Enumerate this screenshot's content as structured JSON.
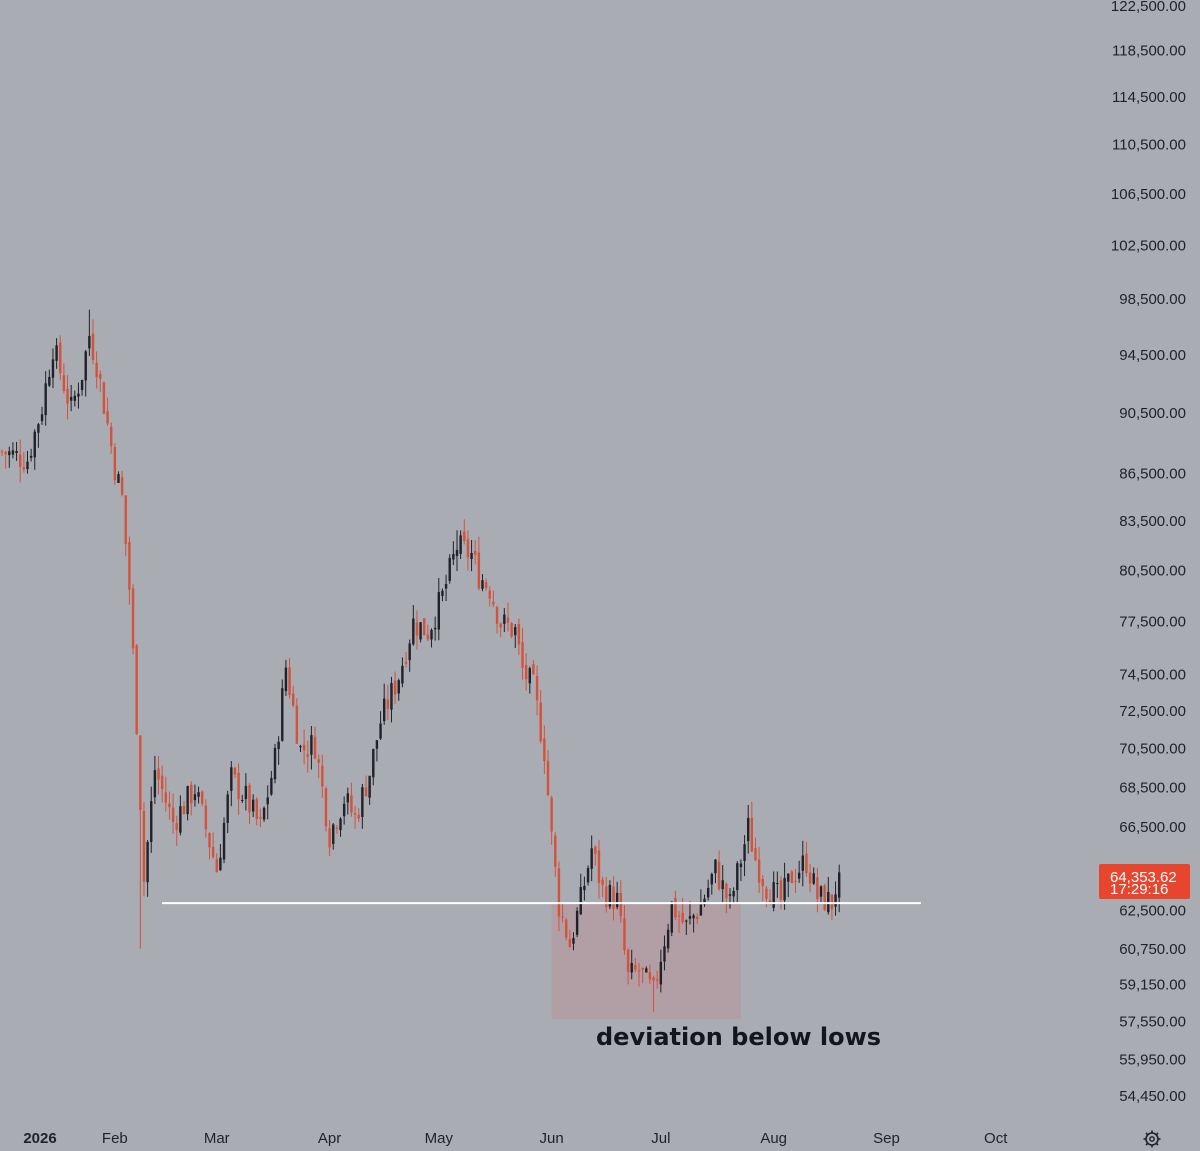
{
  "chart_data": {
    "type": "candlestick",
    "title": "",
    "x_axis": {
      "labels": [
        "2026",
        "Feb",
        "Mar",
        "Apr",
        "May",
        "Jun",
        "Jul",
        "Aug",
        "Sep",
        "Oct"
      ],
      "start_date": "2026-01-01",
      "end_date": "2026-10-15"
    },
    "y_axis": {
      "scale": "log",
      "range": [
        53500,
        122500
      ],
      "tick_labels": [
        "122,500.00",
        "118,500.00",
        "114,500.00",
        "110,500.00",
        "106,500.00",
        "102,500.00",
        "98,500.00",
        "94,500.00",
        "90,500.00",
        "86,500.00",
        "83,500.00",
        "80,500.00",
        "77,500.00",
        "74,500.00",
        "72,500.00",
        "70,500.00",
        "68,500.00",
        "66,500.00",
        "62,500.00",
        "60,750.00",
        "59,150.00",
        "57,550.00",
        "55,950.00",
        "54,450.00"
      ]
    },
    "approx_closes": [
      {
        "date": "2026-01-01",
        "close": 88000
      },
      {
        "date": "2026-01-08",
        "close": 87500
      },
      {
        "date": "2026-01-12",
        "close": 91000
      },
      {
        "date": "2026-01-15",
        "close": 95200
      },
      {
        "date": "2026-01-20",
        "close": 90800
      },
      {
        "date": "2026-01-23",
        "close": 93300
      },
      {
        "date": "2026-01-25",
        "close": 96000
      },
      {
        "date": "2026-01-27",
        "close": 94000
      },
      {
        "date": "2026-01-30",
        "close": 89800
      },
      {
        "date": "2026-02-01",
        "close": 87000
      },
      {
        "date": "2026-02-03",
        "close": 85000
      },
      {
        "date": "2026-02-05",
        "close": 79500
      },
      {
        "date": "2026-02-07",
        "close": 72000
      },
      {
        "date": "2026-02-09",
        "close": 64000
      },
      {
        "date": "2026-02-12",
        "close": 69500
      },
      {
        "date": "2026-02-17",
        "close": 66800
      },
      {
        "date": "2026-02-23",
        "close": 68500
      },
      {
        "date": "2026-03-01",
        "close": 64500
      },
      {
        "date": "2026-03-05",
        "close": 69000
      },
      {
        "date": "2026-03-09",
        "close": 68000
      },
      {
        "date": "2026-03-13",
        "close": 66500
      },
      {
        "date": "2026-03-17",
        "close": 70000
      },
      {
        "date": "2026-03-20",
        "close": 75000
      },
      {
        "date": "2026-03-24",
        "close": 70500
      },
      {
        "date": "2026-03-28",
        "close": 70800
      },
      {
        "date": "2026-04-01",
        "close": 66200
      },
      {
        "date": "2026-04-05",
        "close": 68000
      },
      {
        "date": "2026-04-08",
        "close": 67000
      },
      {
        "date": "2026-04-12",
        "close": 69300
      },
      {
        "date": "2026-04-15",
        "close": 72000
      },
      {
        "date": "2026-04-20",
        "close": 74500
      },
      {
        "date": "2026-04-24",
        "close": 77500
      },
      {
        "date": "2026-04-28",
        "close": 77000
      },
      {
        "date": "2026-05-02",
        "close": 79000
      },
      {
        "date": "2026-05-06",
        "close": 82000
      },
      {
        "date": "2026-05-10",
        "close": 81500
      },
      {
        "date": "2026-05-12",
        "close": 80300
      },
      {
        "date": "2026-05-15",
        "close": 79500
      },
      {
        "date": "2026-05-18",
        "close": 77500
      },
      {
        "date": "2026-05-22",
        "close": 77000
      },
      {
        "date": "2026-05-24",
        "close": 74800
      },
      {
        "date": "2026-05-27",
        "close": 73800
      },
      {
        "date": "2026-05-30",
        "close": 70500
      },
      {
        "date": "2026-06-01",
        "close": 66000
      },
      {
        "date": "2026-06-03",
        "close": 62800
      },
      {
        "date": "2026-06-06",
        "close": 61000
      },
      {
        "date": "2026-06-09",
        "close": 63000
      },
      {
        "date": "2026-06-12",
        "close": 65500
      },
      {
        "date": "2026-06-15",
        "close": 63500
      },
      {
        "date": "2026-06-19",
        "close": 63000
      },
      {
        "date": "2026-06-22",
        "close": 59500
      },
      {
        "date": "2026-06-25",
        "close": 59800
      },
      {
        "date": "2026-06-29",
        "close": 58800
      },
      {
        "date": "2026-07-01",
        "close": 60500
      },
      {
        "date": "2026-07-04",
        "close": 62800
      },
      {
        "date": "2026-07-08",
        "close": 61800
      },
      {
        "date": "2026-07-12",
        "close": 62800
      },
      {
        "date": "2026-07-16",
        "close": 64500
      },
      {
        "date": "2026-07-20",
        "close": 62800
      },
      {
        "date": "2026-07-25",
        "close": 66500
      },
      {
        "date": "2026-07-27",
        "close": 65000
      },
      {
        "date": "2026-07-30",
        "close": 63700
      },
      {
        "date": "2026-08-03",
        "close": 63000
      },
      {
        "date": "2026-08-06",
        "close": 64200
      },
      {
        "date": "2026-08-10",
        "close": 64900
      },
      {
        "date": "2026-08-13",
        "close": 63200
      },
      {
        "date": "2026-08-17",
        "close": 62900
      },
      {
        "date": "2026-08-19",
        "close": 64354
      }
    ],
    "support_line": {
      "price": 62900,
      "from": "2026-01-28",
      "to": "2026-08-26"
    },
    "annotation_box": {
      "from": "2026-06-01",
      "to": "2026-07-23",
      "price_top": 62900,
      "price_bottom": 57700
    },
    "annotation_text": "deviation below lows",
    "last_price": {
      "value_label": "64,353.62",
      "countdown": "17:29:16"
    },
    "colors": {
      "background": "#a9acb3",
      "up_candle": "#1f2229",
      "down_candle": "#d3523a",
      "support_line": "#ffffff",
      "annotation_box": "#b59aa0",
      "badge": "#e8452f"
    }
  },
  "settings_icon": "gear-icon"
}
